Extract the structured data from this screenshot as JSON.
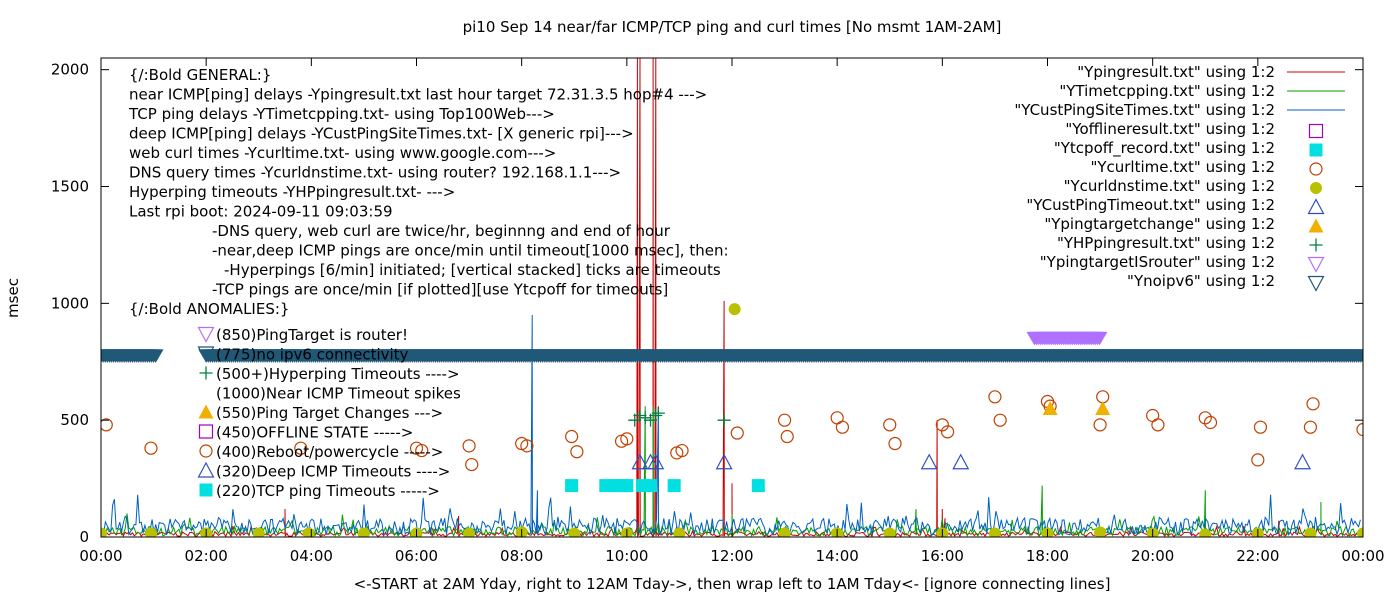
{
  "chart_data": {
    "type": "line",
    "title": "pi10 Sep 14  near/far ICMP/TCP ping and curl times [No msmt 1AM-2AM]",
    "xlabel": "<-START at 2AM Yday, right to 12AM Tday->, then wrap left to 1AM Tday<- [ignore connecting lines]",
    "ylabel": "msec",
    "xlim": [
      0,
      24
    ],
    "ylim": [
      0,
      2050
    ],
    "x_tick_labels": [
      "00:00",
      "02:00",
      "04:00",
      "06:00",
      "08:00",
      "10:00",
      "12:00",
      "14:00",
      "16:00",
      "18:00",
      "20:00",
      "22:00",
      "00:00"
    ],
    "y_ticks": [
      0,
      500,
      1000,
      1500,
      2000
    ],
    "legend_position": "top-right",
    "series": [
      {
        "name": "\"Ypingresult.txt\" using 1:2",
        "style": "line",
        "color": "#cc0000",
        "baseline": 12,
        "spikes": [
          [
            3.5,
            120
          ],
          [
            6.8,
            90
          ],
          [
            10.2,
            2050
          ],
          [
            10.25,
            2050
          ],
          [
            10.5,
            2050
          ],
          [
            10.55,
            2050
          ],
          [
            11.85,
            1010
          ],
          [
            12.0,
            230
          ],
          [
            15.9,
            500
          ],
          [
            16.0,
            120
          ],
          [
            16.05,
            80
          ],
          [
            22.4,
            70
          ]
        ]
      },
      {
        "name": "\"YTimetcpping.txt\" using 1:2",
        "style": "line",
        "color": "#00a000",
        "baseline": 25,
        "spikes": [
          [
            10.35,
            560
          ],
          [
            10.5,
            560
          ],
          [
            12.0,
            100
          ],
          [
            15.5,
            120
          ],
          [
            17.9,
            220
          ],
          [
            21.0,
            200
          ],
          [
            23.2,
            150
          ]
        ]
      },
      {
        "name": "\"YCustPingSiteTimes.txt\" using 1:2",
        "style": "line",
        "color": "#0060c0",
        "baseline": 45,
        "spikes": [
          [
            8.2,
            950
          ],
          [
            10.6,
            560
          ],
          [
            8.3,
            200
          ]
        ]
      },
      {
        "name": "\"Yofflineresult.txt\" using 1:2",
        "style": "open-square",
        "color": "#a000c0",
        "points": []
      },
      {
        "name": "\"Ytcpoff_record.txt\" using 1:2",
        "style": "filled-square",
        "color": "#00e0e0",
        "points": [
          [
            8.95,
            220
          ],
          [
            9.6,
            220
          ],
          [
            9.75,
            220
          ],
          [
            9.9,
            220
          ],
          [
            10.0,
            220
          ],
          [
            10.3,
            220
          ],
          [
            10.45,
            220
          ],
          [
            10.9,
            220
          ],
          [
            12.5,
            220
          ]
        ]
      },
      {
        "name": "\"Ycurltime.txt\" using 1:2",
        "style": "open-circle",
        "color": "#c04000",
        "points": [
          [
            0.1,
            480
          ],
          [
            0.95,
            380
          ],
          [
            3.8,
            380
          ],
          [
            6.0,
            380
          ],
          [
            6.1,
            370
          ],
          [
            7.0,
            390
          ],
          [
            7.05,
            310
          ],
          [
            8.0,
            400
          ],
          [
            8.1,
            390
          ],
          [
            8.95,
            430
          ],
          [
            9.05,
            365
          ],
          [
            9.9,
            410
          ],
          [
            10.0,
            420
          ],
          [
            10.95,
            360
          ],
          [
            11.05,
            370
          ],
          [
            12.1,
            445
          ],
          [
            13.0,
            500
          ],
          [
            13.05,
            430
          ],
          [
            14.0,
            510
          ],
          [
            14.1,
            470
          ],
          [
            15.0,
            480
          ],
          [
            15.1,
            400
          ],
          [
            16.0,
            480
          ],
          [
            16.1,
            450
          ],
          [
            17.0,
            600
          ],
          [
            17.1,
            500
          ],
          [
            18.0,
            580
          ],
          [
            18.05,
            560
          ],
          [
            19.0,
            480
          ],
          [
            19.05,
            600
          ],
          [
            20.0,
            520
          ],
          [
            20.1,
            480
          ],
          [
            21.0,
            510
          ],
          [
            21.1,
            490
          ],
          [
            22.0,
            330
          ],
          [
            22.05,
            470
          ],
          [
            23.0,
            470
          ],
          [
            23.05,
            570
          ],
          [
            24.0,
            460
          ]
        ]
      },
      {
        "name": "\"Ycurldnstime.txt\" using 1:2",
        "style": "filled-circle",
        "color": "#b8c000",
        "points": [
          [
            0,
            15
          ],
          [
            0.95,
            15
          ],
          [
            2.0,
            15
          ],
          [
            3.0,
            15
          ],
          [
            3.95,
            15
          ],
          [
            5.0,
            15
          ],
          [
            6.0,
            15
          ],
          [
            7.0,
            15
          ],
          [
            8.0,
            20
          ],
          [
            9.0,
            15
          ],
          [
            10.0,
            15
          ],
          [
            11.0,
            15
          ],
          [
            12.05,
            975
          ],
          [
            13.0,
            15
          ],
          [
            14.0,
            15
          ],
          [
            15.0,
            15
          ],
          [
            16.0,
            15
          ],
          [
            17.0,
            15
          ],
          [
            18.0,
            15
          ],
          [
            19.0,
            20
          ],
          [
            20.0,
            15
          ],
          [
            21.0,
            10
          ],
          [
            22.0,
            15
          ],
          [
            23.0,
            15
          ],
          [
            24.0,
            15
          ]
        ]
      },
      {
        "name": "\"YCustPingTimeout.txt\" using 1:2",
        "style": "open-triangle-up",
        "color": "#3050c0",
        "points": [
          [
            10.25,
            320
          ],
          [
            10.45,
            320
          ],
          [
            10.55,
            320
          ],
          [
            11.85,
            320
          ],
          [
            15.75,
            320
          ],
          [
            16.35,
            320
          ],
          [
            22.85,
            320
          ]
        ]
      },
      {
        "name": "\"Ypingtargetchange\" using 1:2",
        "style": "filled-triangle-up",
        "color": "#f0b000",
        "points": [
          [
            18.05,
            550
          ],
          [
            19.05,
            550
          ]
        ]
      },
      {
        "name": "\"YHPpingresult.txt\" using 1:2",
        "style": "plus",
        "color": "#008040",
        "points": [
          [
            10.15,
            500
          ],
          [
            10.25,
            520
          ],
          [
            10.35,
            510
          ],
          [
            10.45,
            500
          ],
          [
            10.55,
            520
          ],
          [
            10.6,
            530
          ],
          [
            11.85,
            500
          ]
        ]
      },
      {
        "name": "\"YpingtargetISrouter\" using 1:2",
        "style": "open-triangle-down",
        "color": "#b070ff",
        "range": [
          17.75,
          19.0
        ],
        "value": 850
      },
      {
        "name": "\"Ynoipv6\" using 1:2",
        "style": "open-triangle-down",
        "color": "#205878",
        "ranges": [
          [
            0,
            1.05
          ],
          [
            2.0,
            24
          ]
        ],
        "value": 775
      }
    ]
  },
  "annotations": [
    {
      "text": "{/:Bold GENERAL:}",
      "indent": 0
    },
    {
      "text": "near ICMP[ping] delays -Ypingresult.txt last hour target 72.31.3.5 hop#4 --->",
      "indent": 0
    },
    {
      "text": "TCP ping delays -YTimetcpping.txt- using Top100Web--->",
      "indent": 0
    },
    {
      "text": "deep ICMP[ping] delays -YCustPingSiteTimes.txt- [X generic rpi]--->",
      "indent": 0
    },
    {
      "text": "web curl times -Ycurltime.txt- using www.google.com--->",
      "indent": 0
    },
    {
      "text": "DNS query times -Ycurldnstime.txt- using router? 192.168.1.1--->",
      "indent": 0
    },
    {
      "text": "Hyperping timeouts -YHPpingresult.txt- --->",
      "indent": 0
    },
    {
      "text": "Last rpi boot: 2024-09-11 09:03:59",
      "indent": 0
    },
    {
      "text": "-DNS query, web curl are twice/hr, beginnng and end of hour",
      "indent": 1
    },
    {
      "text": "-near,deep ICMP pings are once/min until timeout[1000 msec], then:",
      "indent": 1
    },
    {
      "text": "-Hyperpings [6/min] initiated; [vertical stacked] ticks are timeouts",
      "indent": 2
    },
    {
      "text": "-TCP pings are once/min [if plotted][use Ytcpoff for timeouts]",
      "indent": 1
    },
    {
      "text": "{/:Bold ANOMALIES:}",
      "indent": 0
    }
  ],
  "anomalies": [
    {
      "text": "(850)PingTarget is router!",
      "marker": "open-triangle-down",
      "color": "#b070ff"
    },
    {
      "text": "(775)no ipv6 connectivity",
      "marker": "open-triangle-down",
      "color": "#205878"
    },
    {
      "text": "(500+)Hyperping Timeouts ---->",
      "marker": "plus",
      "color": "#008040"
    },
    {
      "text": "(1000)Near ICMP Timeout spikes",
      "marker": "none",
      "color": "#cc0000"
    },
    {
      "text": "(550)Ping Target Changes --->",
      "marker": "filled-triangle-up",
      "color": "#f0b000"
    },
    {
      "text": "(450)OFFLINE STATE ----->",
      "marker": "open-square",
      "color": "#a000c0"
    },
    {
      "text": "(400)Reboot/powercycle ----->",
      "marker": "open-circle",
      "color": "#c04000"
    },
    {
      "text": "(320)Deep ICMP Timeouts ---->",
      "marker": "open-triangle-up",
      "color": "#3050c0"
    },
    {
      "text": "(220)TCP ping Timeouts ----->",
      "marker": "filled-square",
      "color": "#00e0e0"
    }
  ]
}
